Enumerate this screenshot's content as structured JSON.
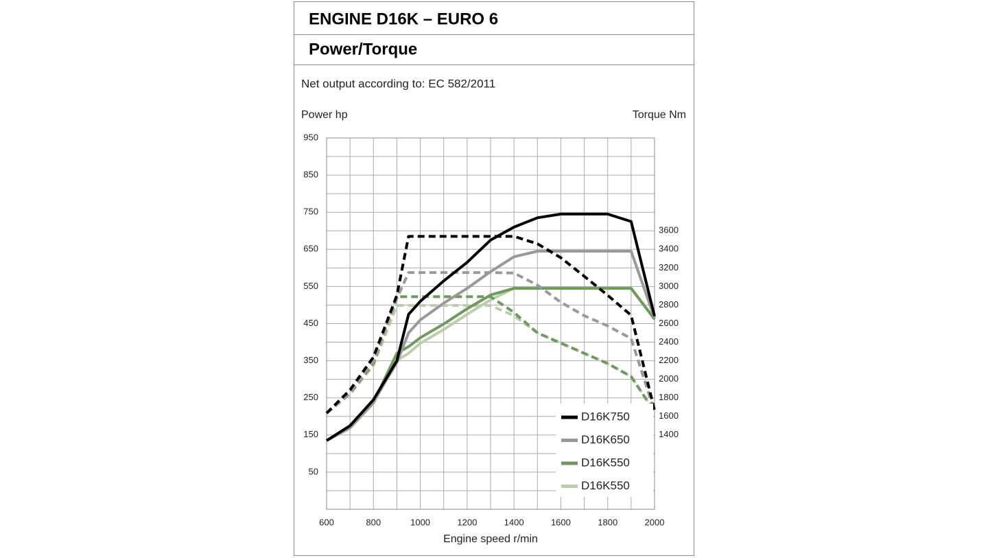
{
  "chart_data": {
    "type": "line",
    "title": "ENGINE D16K – EURO 6",
    "subtitle": "Power/Torque",
    "note": "Net output according to: EC 582/2011",
    "ylabel": "Power hp",
    "y2label": "Torque Nm",
    "xlabel": "Engine speed r/min",
    "x": [
      600,
      700,
      800,
      900,
      950,
      1000,
      1100,
      1200,
      1300,
      1400,
      1500,
      1600,
      1700,
      1800,
      1900,
      2000
    ],
    "xlim": [
      600,
      2000
    ],
    "xticks": [
      600,
      800,
      1000,
      1200,
      1400,
      1600,
      1800,
      2000
    ],
    "xgrid": [
      700,
      900,
      1100,
      1300,
      1500,
      1700,
      1900
    ],
    "ylim": [
      -50,
      950
    ],
    "yticks": [
      50,
      150,
      250,
      350,
      450,
      550,
      650,
      750,
      850,
      950
    ],
    "ygrid": [
      -50,
      0,
      100,
      200,
      300,
      400,
      500,
      600,
      700,
      800,
      900
    ],
    "y2lim": [
      600,
      4600
    ],
    "y2ticks": [
      1400,
      1600,
      1800,
      2000,
      2200,
      2400,
      2600,
      2800,
      3000,
      3200,
      3400,
      3600
    ],
    "grid": true,
    "legend": "lower-right",
    "series": [
      {
        "name": "D16K750",
        "color": "#000000",
        "values": [
          135,
          175,
          245,
          350,
          475,
          510,
          565,
          615,
          675,
          710,
          735,
          745,
          745,
          745,
          725,
          470
        ],
        "torque": [
          1635,
          1885,
          2240,
          2905,
          3540,
          3540,
          3540,
          3540,
          3540,
          3540,
          3460,
          3310,
          3110,
          2905,
          2690,
          1665
        ]
      },
      {
        "name": "D16K650",
        "color": "#999999",
        "values": [
          135,
          170,
          240,
          345,
          425,
          460,
          505,
          545,
          590,
          630,
          645,
          645,
          645,
          645,
          645,
          465
        ],
        "torque": [
          1635,
          1860,
          2190,
          2870,
          3150,
          3150,
          3150,
          3150,
          3150,
          3145,
          3015,
          2830,
          2685,
          2575,
          2440,
          1650
        ]
      },
      {
        "name": "D16K550",
        "color": "#6f9a5c",
        "values": [
          135,
          170,
          238,
          370,
          388,
          412,
          449,
          490,
          527,
          545,
          545,
          545,
          545,
          545,
          545,
          462
        ],
        "torque": [
          1635,
          1850,
          2170,
          2890,
          2890,
          2890,
          2890,
          2890,
          2890,
          2720,
          2500,
          2390,
          2280,
          2170,
          2030,
          1650
        ]
      },
      {
        "name": "D16K550",
        "color": "#bccdae",
        "values": [
          135,
          168,
          235,
          351,
          370,
          397,
          434,
          475,
          514,
          545,
          545,
          545,
          545,
          545,
          545,
          462
        ],
        "torque": [
          1635,
          1840,
          2150,
          2795,
          2795,
          2795,
          2795,
          2795,
          2795,
          2685,
          2500,
          2390,
          2280,
          2170,
          2030,
          1650
        ]
      }
    ]
  }
}
